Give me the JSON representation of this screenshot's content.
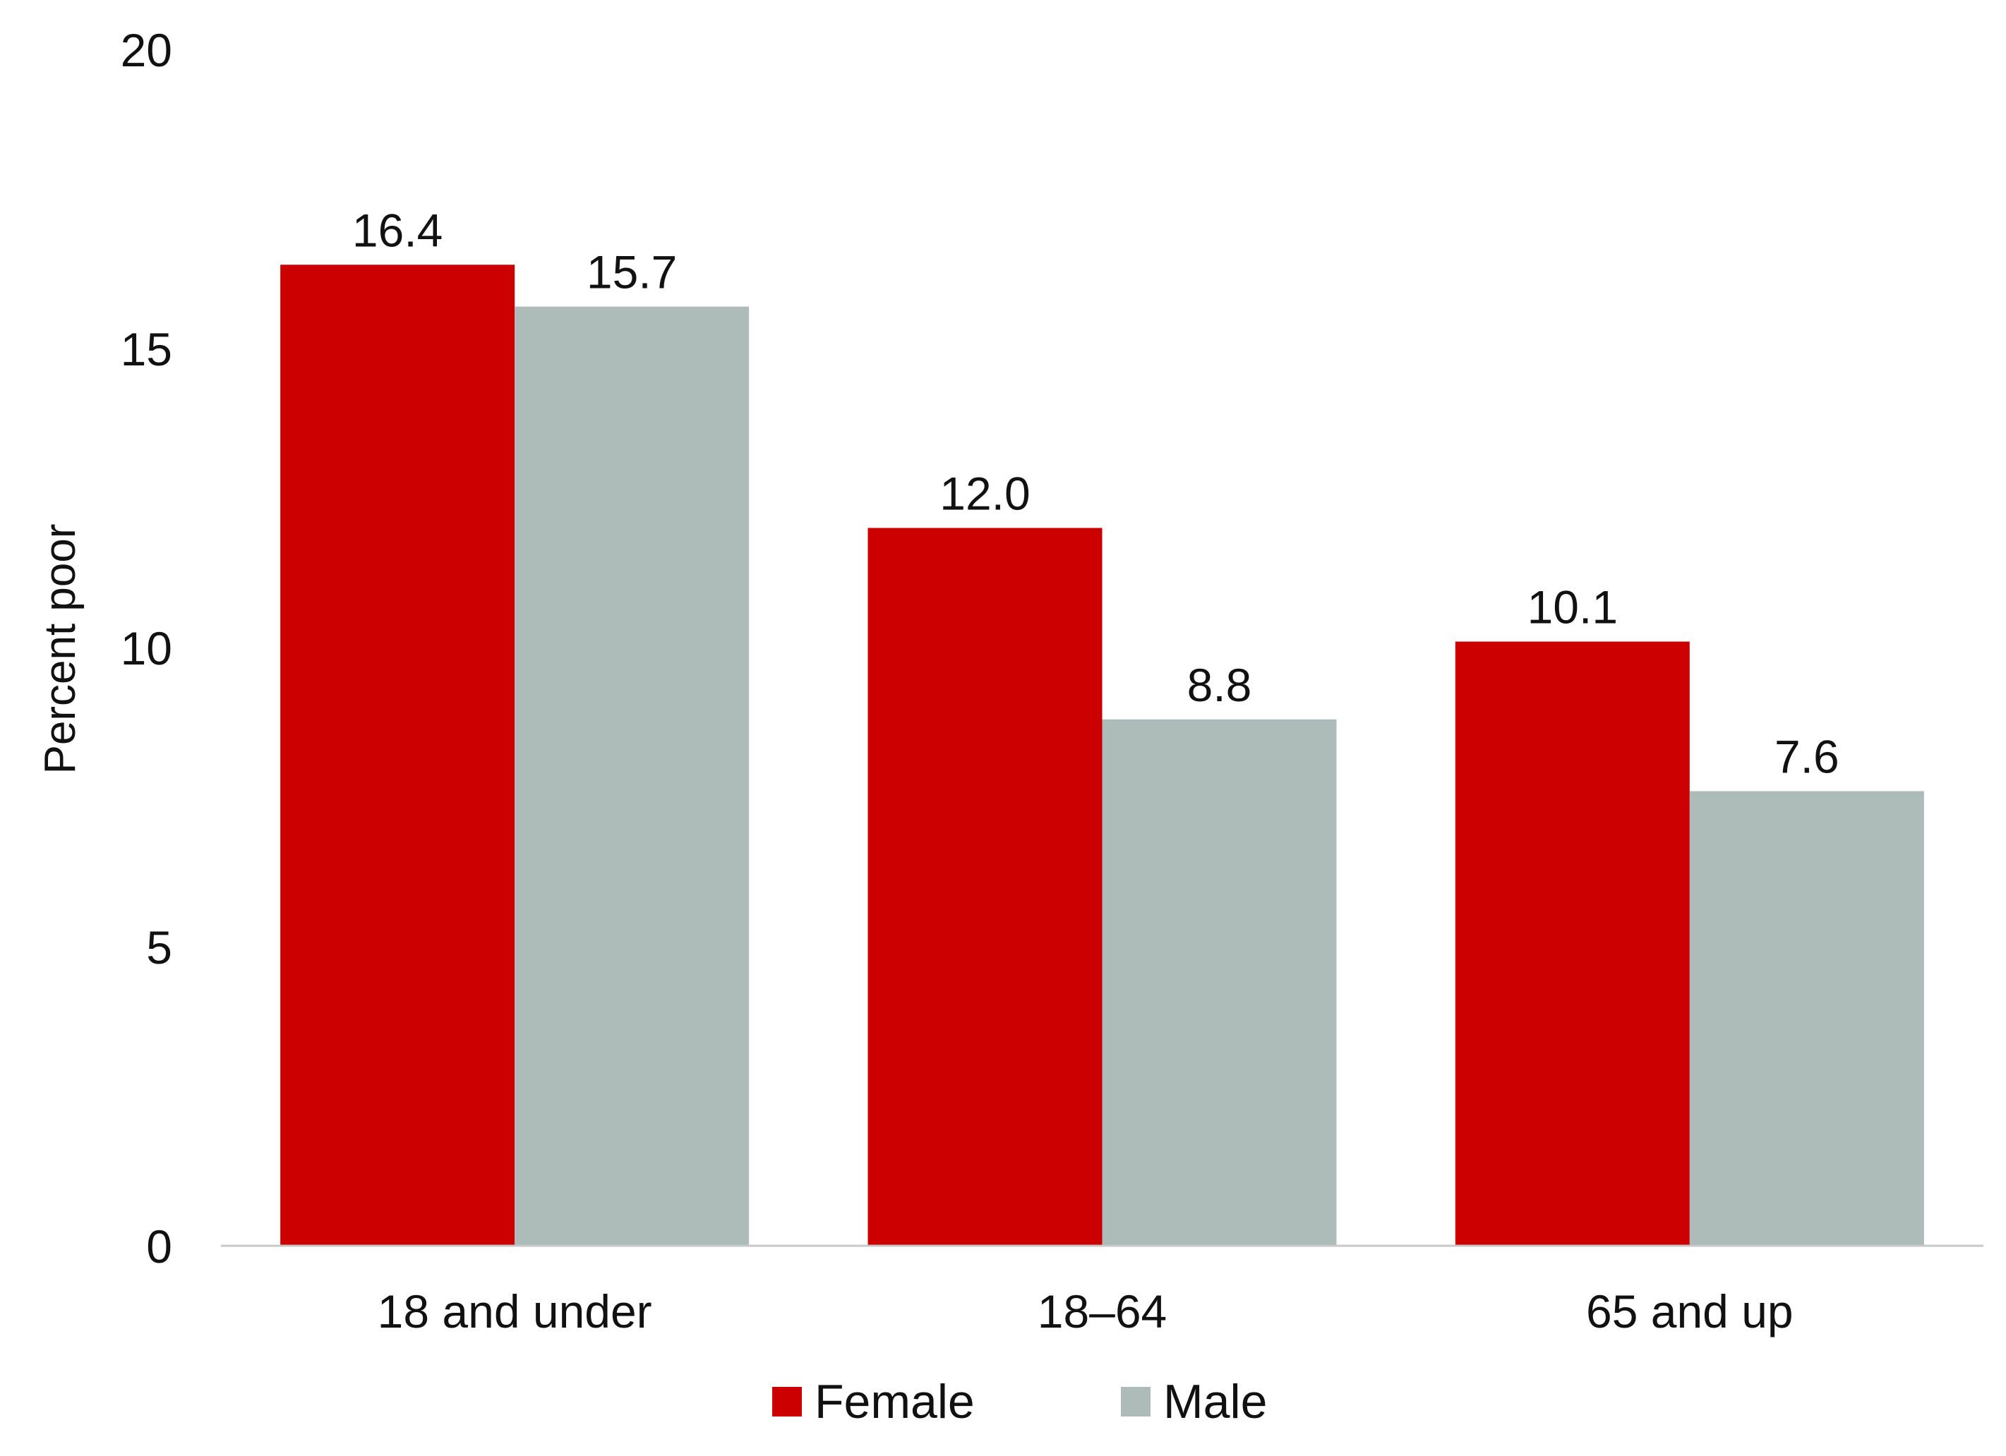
{
  "chart_data": {
    "type": "bar",
    "title": "",
    "xlabel": "",
    "ylabel": "Percent poor",
    "categories": [
      "18 and under",
      "18–64",
      "65 and up"
    ],
    "series": [
      {
        "name": "Female",
        "color": "#cc0000",
        "values": [
          16.4,
          12.0,
          10.1
        ],
        "labels": [
          "16.4",
          "12.0",
          "10.1"
        ]
      },
      {
        "name": "Male",
        "color": "#adbbb9",
        "values": [
          15.7,
          8.8,
          7.6
        ],
        "labels": [
          "15.7",
          "8.8",
          "7.6"
        ]
      }
    ],
    "ylim": [
      0,
      20
    ],
    "yticks": [
      0,
      5,
      10,
      15,
      20
    ],
    "grid": false,
    "legend": "bottom-center",
    "axis_color": "#c8c8c8"
  }
}
